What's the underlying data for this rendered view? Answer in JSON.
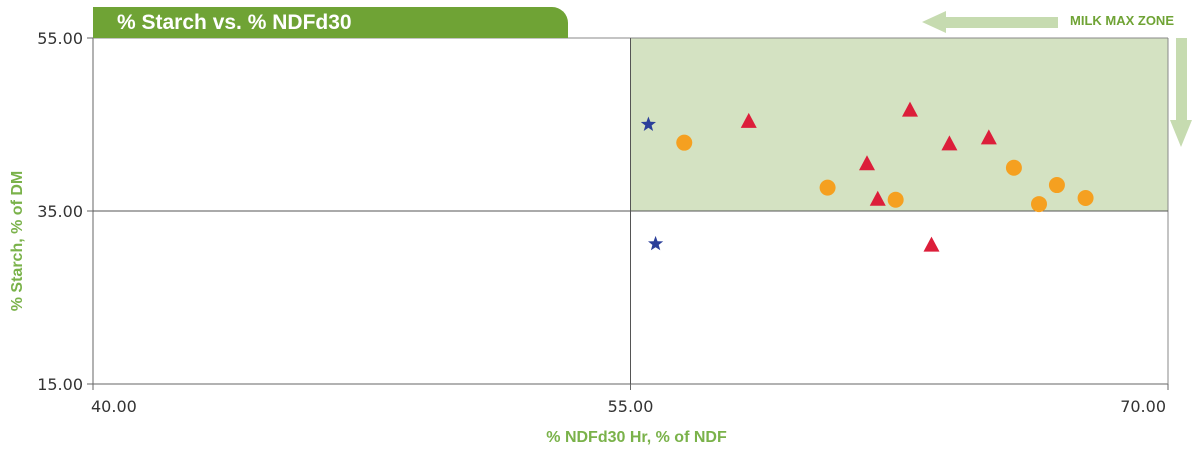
{
  "chart_data": {
    "type": "scatter",
    "title": "% Starch vs. % NDFd30",
    "xlabel": "% NDFd30 Hr, % of NDF",
    "ylabel": "% Starch, % of DM",
    "xlim": [
      40,
      70
    ],
    "ylim": [
      15,
      55
    ],
    "xticks": [
      "40.00",
      "55.00",
      "70.00"
    ],
    "yticks": [
      "15.00",
      "35.00",
      "55.00"
    ],
    "reference_lines": {
      "x": 55,
      "y": 35
    },
    "zone": {
      "label": "MILK MAX ZONE",
      "x_range": [
        55,
        70
      ],
      "y_range": [
        35,
        55
      ],
      "color": "#d4e2c2"
    },
    "grid": false,
    "series": [
      {
        "marker": "star",
        "color": "#2b3f9a",
        "points": [
          [
            55.5,
            45.0
          ],
          [
            55.7,
            31.2
          ]
        ]
      },
      {
        "marker": "triangle",
        "color": "#dc1e3a",
        "points": [
          [
            58.3,
            45.3
          ],
          [
            61.6,
            40.4
          ],
          [
            61.9,
            36.3
          ],
          [
            62.8,
            46.6
          ],
          [
            63.4,
            31.0
          ],
          [
            63.9,
            42.7
          ],
          [
            65.0,
            43.4
          ]
        ]
      },
      {
        "marker": "circle",
        "color": "#f5a020",
        "points": [
          [
            56.5,
            42.9
          ],
          [
            60.5,
            37.7
          ],
          [
            62.4,
            36.3
          ],
          [
            65.7,
            40.0
          ],
          [
            66.4,
            35.8
          ],
          [
            66.9,
            38.0
          ],
          [
            67.7,
            36.5
          ]
        ]
      }
    ]
  }
}
